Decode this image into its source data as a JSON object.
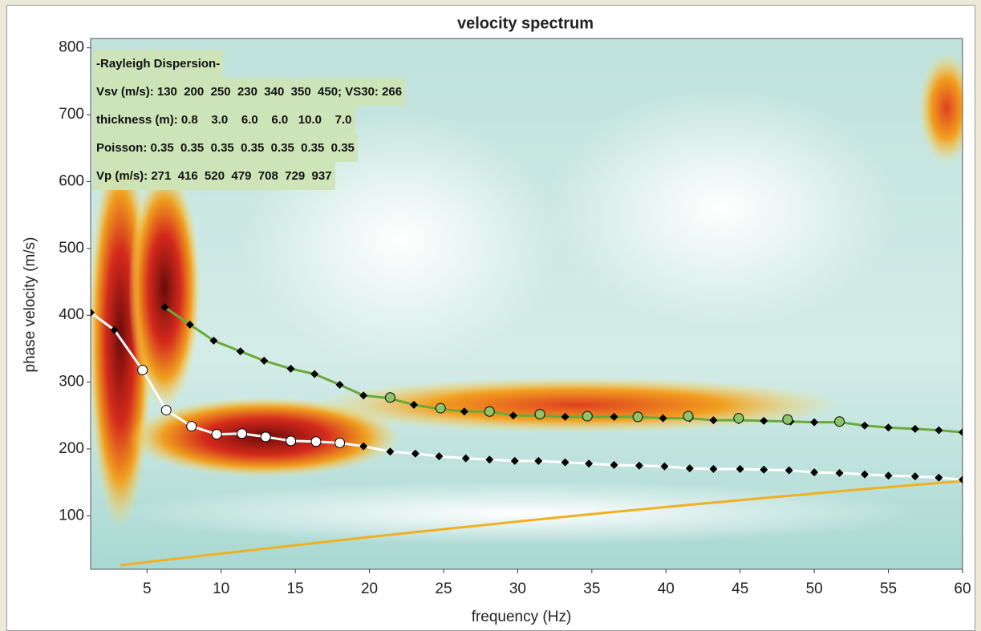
{
  "chart_data": {
    "type": "line",
    "title": "velocity spectrum",
    "x_label": "frequency (Hz)",
    "y_label": "phase velocity (m/s)",
    "xlim": [
      1.2,
      60
    ],
    "ylim": [
      20,
      814
    ],
    "xticks": [
      5,
      10,
      15,
      20,
      25,
      30,
      35,
      40,
      45,
      50,
      55,
      60
    ],
    "yticks": [
      100,
      200,
      300,
      400,
      500,
      600,
      700,
      800
    ],
    "annotations": [
      "-Rayleigh Dispersion-",
      "Vsv (m/s): 130  200  250  230  340  350  450; VS30: 266",
      "thickness (m): 0.8    3.0    6.0    6.0   10.0    7.0",
      "Poisson: 0.35  0.35  0.35  0.35  0.35  0.35  0.35",
      "Vp (m/s): 271  416  520  479  708  729  937"
    ],
    "series": [
      {
        "color": "#6aaa3a",
        "line": true,
        "marker": "diamond",
        "marker_color": "#000000",
        "x": [
          6.2,
          7.9,
          9.5,
          11.3,
          12.9,
          14.7,
          16.3,
          18.0,
          19.6,
          21.3,
          23.0,
          24.7,
          26.4,
          28.1,
          29.7,
          31.4,
          33.2,
          34.7,
          36.5,
          38.2,
          39.8,
          41.6,
          43.2,
          44.9,
          46.6,
          48.4,
          50.0,
          51.7,
          53.4,
          55.0,
          56.8,
          58.4,
          60.0
        ],
        "values": [
          412,
          386,
          362,
          346,
          332,
          320,
          312,
          296,
          280,
          276,
          266,
          260,
          256,
          256,
          250,
          250,
          248,
          248,
          248,
          248,
          246,
          246,
          243,
          243,
          242,
          241,
          240,
          240,
          235,
          232,
          230,
          228,
          225
        ]
      },
      {
        "color": "#8fc46a",
        "line": false,
        "marker": "circle",
        "marker_color": "#8fc46a",
        "x": [
          21.4,
          24.8,
          28.1,
          31.5,
          34.7,
          38.1,
          41.5,
          44.9,
          48.2,
          51.7
        ],
        "values": [
          277,
          261,
          256,
          252,
          249,
          248,
          249,
          246,
          244,
          241
        ]
      },
      {
        "color": "#ffffff",
        "line": true,
        "marker": "diamond",
        "marker_color": "#000000",
        "x": [
          1.2,
          2.8,
          4.7,
          6.3,
          8.0,
          9.7,
          11.4,
          13.0,
          14.7,
          16.4,
          18.0,
          19.6,
          21.4,
          23.1,
          24.7,
          26.5,
          28.1,
          29.8,
          31.4,
          33.2,
          34.8,
          36.5,
          38.2,
          39.9,
          41.6,
          43.2,
          45.0,
          46.6,
          48.3,
          50.0,
          51.7,
          53.4,
          55.0,
          56.8,
          58.4,
          60.0
        ],
        "values": [
          404,
          378,
          318,
          258,
          234,
          222,
          223,
          218,
          212,
          211,
          209,
          204,
          196,
          193,
          189,
          186,
          184,
          182,
          182,
          180,
          178,
          176,
          175,
          174,
          171,
          170,
          170,
          169,
          168,
          165,
          164,
          162,
          160,
          159,
          157,
          154
        ]
      },
      {
        "color": "#ffffff",
        "line": false,
        "marker": "circle",
        "marker_color": "#ffffff",
        "x": [
          4.7,
          6.3,
          8.0,
          9.7,
          11.4,
          13.0,
          14.7,
          16.4,
          18.0
        ],
        "values": [
          318,
          258,
          234,
          222,
          223,
          218,
          212,
          211,
          209
        ]
      }
    ]
  }
}
